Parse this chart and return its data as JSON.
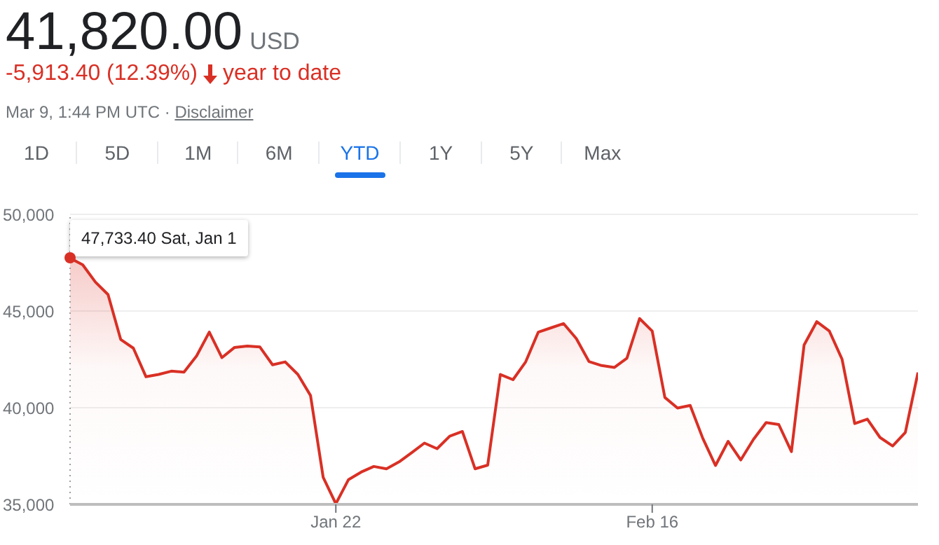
{
  "chart_data": {
    "type": "area",
    "title": "41,820.00",
    "subtitle": "-5,913.40 (12.39%)",
    "annotations": [
      "USD",
      "year to date",
      "Mar 9, 1:44 PM UTC ·",
      "Disclaimer",
      "1D",
      "5D",
      "1M",
      "6M",
      "YTD",
      "1Y",
      "5Y",
      "Max",
      {
        "text": "47,733.40 Sat, Jan 1",
        "x": "--01-01",
        "y": 47733.4
      }
    ],
    "x": [
      "--01-01",
      "--01-02",
      "--01-03",
      "--01-04",
      "--01-05",
      "--01-06",
      "--01-07",
      "--01-08",
      "--01-09",
      "--01-10",
      "--01-11",
      "--01-12",
      "--01-13",
      "--01-14",
      "--01-15",
      "--01-16",
      "--01-17",
      "--01-18",
      "--01-19",
      "--01-20",
      "--01-21",
      "--01-22",
      "--01-23",
      "--01-24",
      "--01-25",
      "--01-26",
      "--01-27",
      "--01-28",
      "--01-29",
      "--01-30",
      "--01-31",
      "--02-01",
      "--02-02",
      "--02-03",
      "--02-04",
      "--02-05",
      "--02-06",
      "--02-07",
      "--02-08",
      "--02-09",
      "--02-10",
      "--02-11",
      "--02-12",
      "--02-13",
      "--02-14",
      "--02-15",
      "--02-16",
      "--02-17",
      "--02-18",
      "--02-19",
      "--02-20",
      "--02-21",
      "--02-22",
      "--02-23",
      "--02-24",
      "--02-25",
      "--02-26",
      "--02-27",
      "--02-28",
      "--03-01",
      "--03-02",
      "--03-03",
      "--03-04",
      "--03-05",
      "--03-06",
      "--03-07",
      "--03-08",
      "--03-09"
    ],
    "series": [
      {
        "color": "#d93025",
        "values": [
          47733.4,
          47390,
          46500,
          45850,
          43530,
          43080,
          41600,
          41720,
          41890,
          41840,
          42680,
          43910,
          42590,
          43120,
          43190,
          43140,
          42220,
          42370,
          41720,
          40630,
          36400,
          35030,
          36280,
          36670,
          36960,
          36840,
          37200,
          37680,
          38170,
          37880,
          38530,
          38770,
          36840,
          37030,
          41720,
          41450,
          42370,
          43910,
          44130,
          44350,
          43580,
          42390,
          42180,
          42080,
          42560,
          44610,
          43960,
          40530,
          39980,
          40120,
          38410,
          37010,
          38260,
          37300,
          38360,
          39230,
          39130,
          37730,
          43240,
          44450,
          43960,
          42510,
          39180,
          39410,
          38460,
          38020,
          38720,
          41820
        ]
      }
    ],
    "xlim": [
      "--01-01",
      "--03-09"
    ],
    "xticks": [
      {
        "value": "--01-22",
        "label": "Jan 22"
      },
      {
        "value": "--02-16",
        "label": "Feb 16"
      }
    ],
    "ylim": [
      35000,
      50000
    ],
    "yticks": [
      {
        "value": 35000,
        "label": "35,000"
      },
      {
        "value": 40000,
        "label": "40,000"
      },
      {
        "value": 45000,
        "label": "45,000"
      },
      {
        "value": 50000,
        "label": "50,000"
      }
    ],
    "ref_lines": [
      {
        "axis": "x",
        "value": "--01-01",
        "line_style": "dotted",
        "color": "#9e9e9e"
      }
    ],
    "grid": "y",
    "legend": false,
    "marker": "none",
    "line_style": "solid"
  }
}
